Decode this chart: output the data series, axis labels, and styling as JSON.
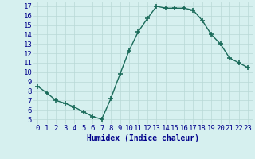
{
  "x": [
    0,
    1,
    2,
    3,
    4,
    5,
    6,
    7,
    8,
    9,
    10,
    11,
    12,
    13,
    14,
    15,
    16,
    17,
    18,
    19,
    20,
    21,
    22,
    23
  ],
  "y": [
    8.5,
    7.8,
    7.0,
    6.7,
    6.3,
    5.8,
    5.3,
    5.0,
    7.2,
    9.8,
    12.3,
    14.3,
    15.7,
    17.0,
    16.8,
    16.8,
    16.8,
    16.6,
    15.5,
    14.0,
    13.0,
    11.5,
    11.0,
    10.5
  ],
  "line_color": "#1a6b5a",
  "marker": "+",
  "marker_size": 4,
  "bg_color": "#d6f0ef",
  "grid_color": "#b8d8d6",
  "xlabel": "Humidex (Indice chaleur)",
  "ylim": [
    4.5,
    17.5
  ],
  "xlim": [
    -0.5,
    23.5
  ],
  "yticks": [
    5,
    6,
    7,
    8,
    9,
    10,
    11,
    12,
    13,
    14,
    15,
    16,
    17
  ],
  "xticks": [
    0,
    1,
    2,
    3,
    4,
    5,
    6,
    7,
    8,
    9,
    10,
    11,
    12,
    13,
    14,
    15,
    16,
    17,
    18,
    19,
    20,
    21,
    22,
    23
  ],
  "xlabel_fontsize": 7,
  "tick_fontsize": 6.5,
  "xlabel_color": "#00008b",
  "tick_color": "#00008b",
  "line_width": 1.0,
  "marker_linewidth": 1.2
}
